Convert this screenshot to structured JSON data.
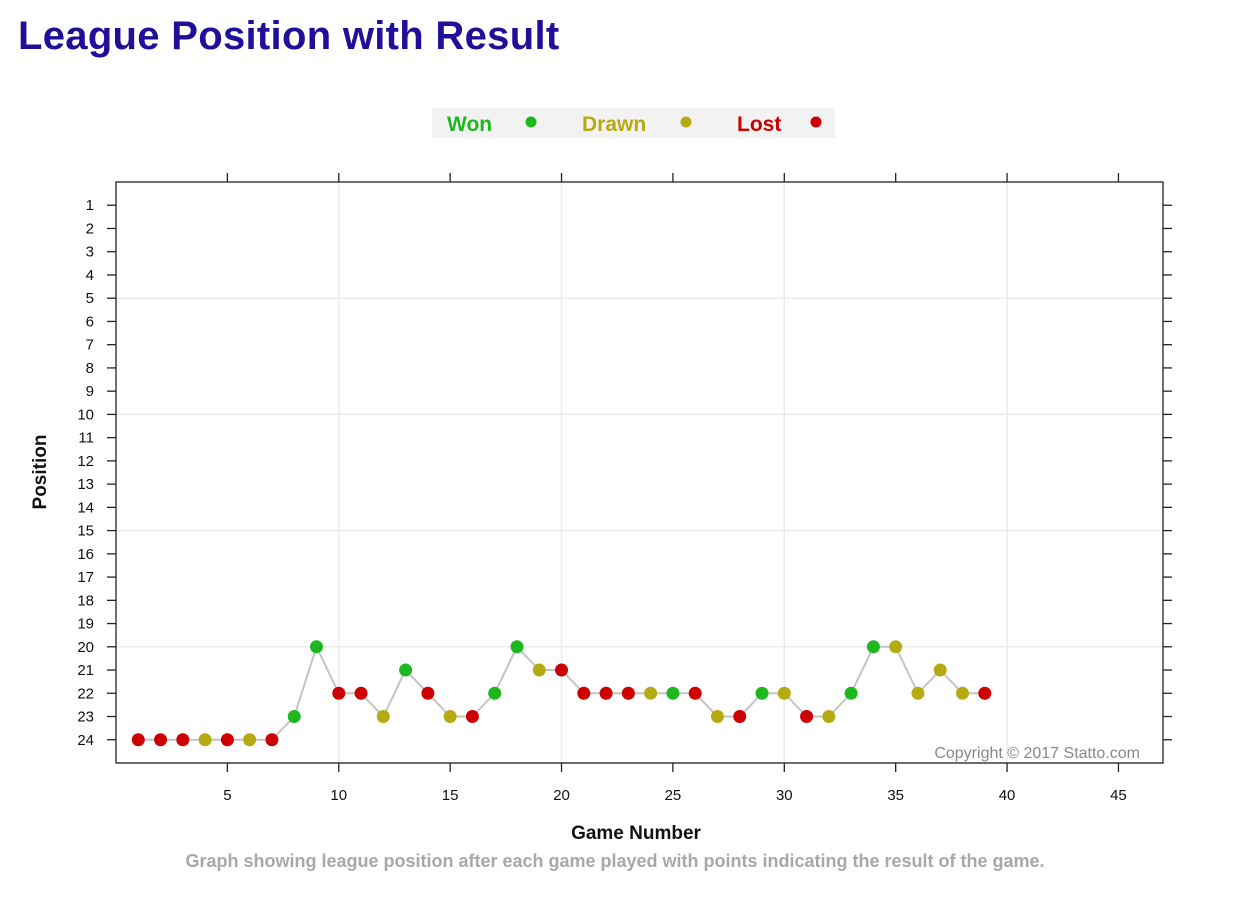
{
  "page": {
    "title": "League Position with Result"
  },
  "chart_data": {
    "type": "line",
    "xlabel": "Game Number",
    "ylabel": "Position",
    "xlim": [
      0,
      47
    ],
    "ylim": [
      25,
      0
    ],
    "y_inverted": true,
    "x_ticks": [
      5,
      10,
      15,
      20,
      25,
      30,
      35,
      40,
      45
    ],
    "y_ticks": [
      1,
      2,
      3,
      4,
      5,
      6,
      7,
      8,
      9,
      10,
      11,
      12,
      13,
      14,
      15,
      16,
      17,
      18,
      19,
      20,
      21,
      22,
      23,
      24
    ],
    "grid": true,
    "legend_placement": "top-center",
    "legend": [
      {
        "key": "W",
        "label": "Won",
        "color": "#1db81d"
      },
      {
        "key": "D",
        "label": "Drawn",
        "color": "#b5aa12"
      },
      {
        "key": "L",
        "label": "Lost",
        "color": "#cc0000"
      }
    ],
    "line_color": "#c4c4c4",
    "games": [
      1,
      2,
      3,
      4,
      5,
      6,
      7,
      8,
      9,
      10,
      11,
      12,
      13,
      14,
      15,
      16,
      17,
      18,
      19,
      20,
      21,
      22,
      23,
      24,
      25,
      26,
      27,
      28,
      29,
      30,
      31,
      32,
      33,
      34,
      35,
      36,
      37,
      38,
      39
    ],
    "positions": [
      24,
      24,
      24,
      24,
      24,
      24,
      24,
      23,
      20,
      22,
      22,
      23,
      21,
      22,
      23,
      23,
      22,
      20,
      21,
      21,
      22,
      22,
      22,
      22,
      22,
      22,
      23,
      23,
      22,
      22,
      23,
      23,
      22,
      20,
      20,
      22,
      21,
      22,
      22
    ],
    "results": [
      "L",
      "L",
      "L",
      "D",
      "L",
      "D",
      "L",
      "W",
      "W",
      "L",
      "L",
      "D",
      "W",
      "L",
      "D",
      "L",
      "W",
      "W",
      "D",
      "L",
      "L",
      "L",
      "L",
      "D",
      "W",
      "L",
      "D",
      "L",
      "W",
      "D",
      "L",
      "D",
      "W",
      "W",
      "D",
      "D",
      "D",
      "D",
      "L"
    ],
    "copyright": "Copyright © 2017 Statto.com",
    "caption": "Graph showing league position after each game played with points indicating the result of the game."
  }
}
